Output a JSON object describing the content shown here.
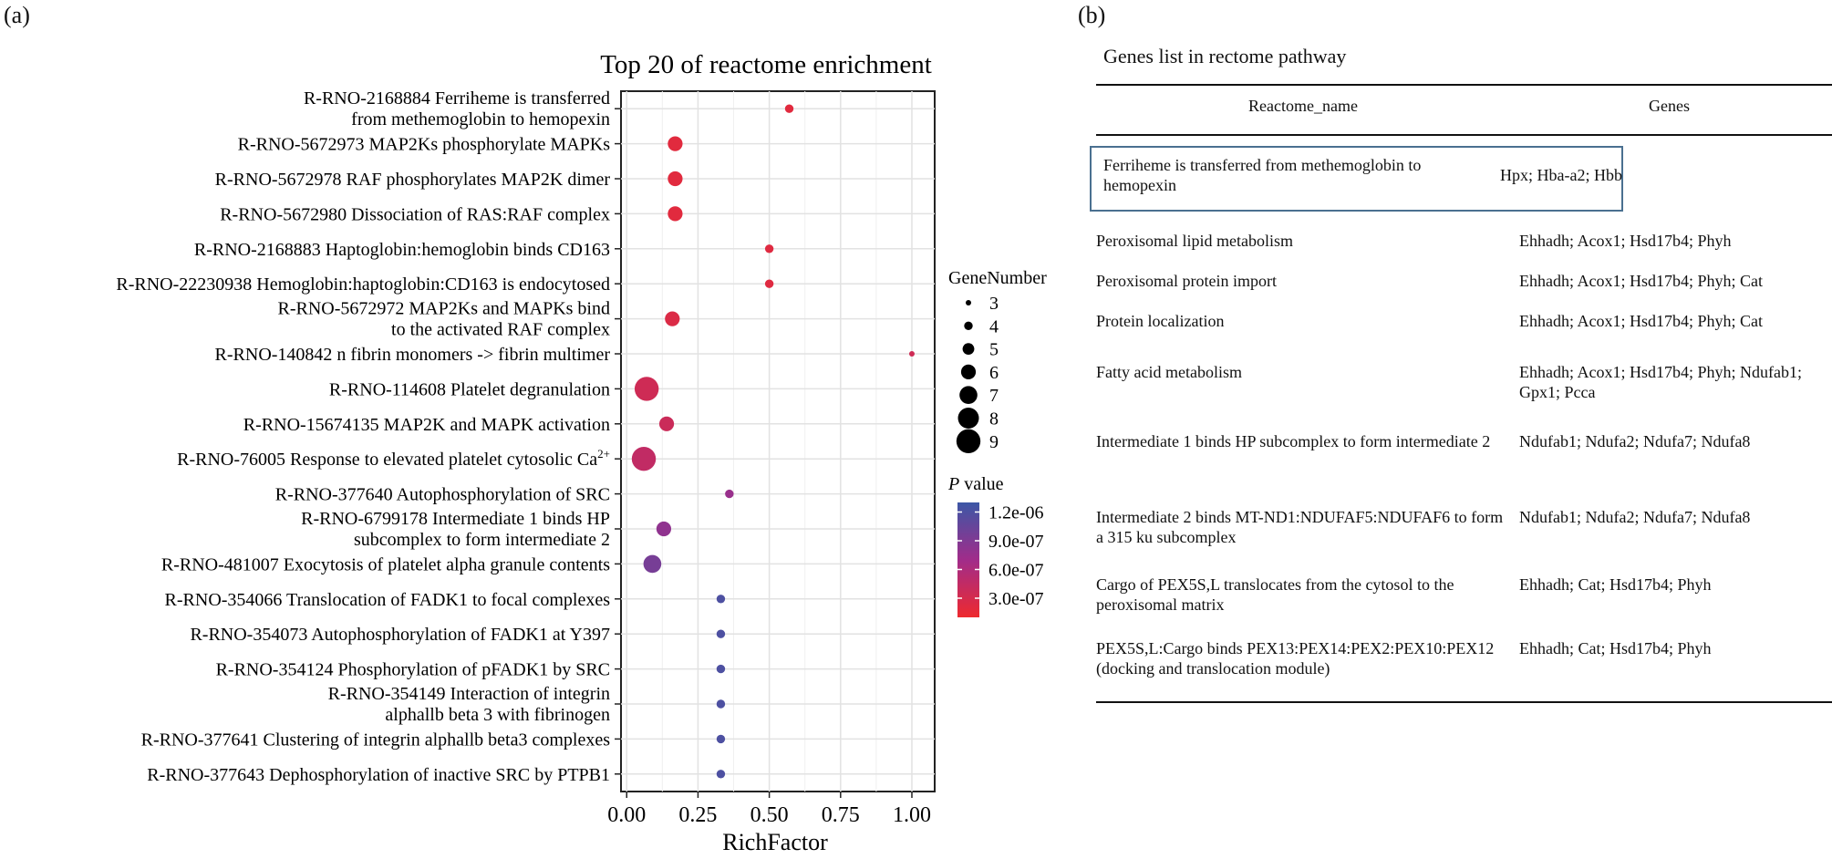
{
  "panel_a_label": "(a)",
  "panel_b_label": "(b)",
  "chart_data": {
    "type": "scatter",
    "title": "Top 20 of reactome enrichment",
    "xlabel": "RichFactor",
    "ylabel": "",
    "xlim": [
      -0.02,
      1.08
    ],
    "xticks": [
      0.0,
      0.25,
      0.5,
      0.75,
      1.0
    ],
    "xtick_labels": [
      "0.00",
      "0.25",
      "0.50",
      "0.75",
      "1.00"
    ],
    "grid": true,
    "legend_position": "right",
    "size_legend": {
      "title": "GeneNumber",
      "values": [
        3,
        4,
        5,
        6,
        7,
        8,
        9
      ]
    },
    "color_legend": {
      "title_italic": "P",
      "title_rest": " value",
      "ticks": [
        1.2e-06,
        9e-07,
        6e-07,
        3e-07
      ],
      "tick_labels": [
        "1.2e-06",
        "9.0e-07",
        "6.0e-07",
        "3.0e-07"
      ],
      "range": [
        1e-07,
        1.3e-06
      ],
      "low_color": "#ee2a2f",
      "mid_color": "#a12c8a",
      "high_color": "#3c57a6"
    },
    "points": [
      {
        "label": [
          "R-RNO-2168884 Ferriheme is transferred",
          "from methemoglobin to hemopexin"
        ],
        "x": 0.57,
        "genes": 4,
        "p": 2e-07
      },
      {
        "label": [
          "R-RNO-5672973 MAP2Ks phosphorylate MAPKs"
        ],
        "x": 0.17,
        "genes": 6,
        "p": 2e-07
      },
      {
        "label": [
          "R-RNO-5672978 RAF phosphorylates MAP2K dimer"
        ],
        "x": 0.17,
        "genes": 6,
        "p": 2e-07
      },
      {
        "label": [
          "R-RNO-5672980 Dissociation of RAS:RAF complex"
        ],
        "x": 0.17,
        "genes": 6,
        "p": 2e-07
      },
      {
        "label": [
          "R-RNO-2168883 Haptoglobin:hemoglobin binds CD163"
        ],
        "x": 0.5,
        "genes": 4,
        "p": 2.2e-07
      },
      {
        "label": [
          "R-RNO-22230938 Hemoglobin:haptoglobin:CD163 is endocytosed"
        ],
        "x": 0.5,
        "genes": 4,
        "p": 2.2e-07
      },
      {
        "label": [
          "R-RNO-5672972 MAP2Ks and MAPKs bind",
          "to the activated RAF complex"
        ],
        "x": 0.16,
        "genes": 6,
        "p": 2.5e-07
      },
      {
        "label": [
          "R-RNO-140842 n fibrin monomers -> fibrin multimer"
        ],
        "x": 1.0,
        "genes": 3,
        "p": 3.5e-07
      },
      {
        "label": [
          "R-RNO-114608 Platelet degranulation"
        ],
        "x": 0.07,
        "genes": 9,
        "p": 3.5e-07
      },
      {
        "label": [
          "R-RNO-15674135 MAP2K and MAPK activation"
        ],
        "x": 0.14,
        "genes": 6,
        "p": 3.8e-07
      },
      {
        "label": [
          "R-RNO-76005 Response to elevated platelet cytosolic Ca"
        ],
        "label_sup": "2+",
        "x": 0.06,
        "genes": 9,
        "p": 4.5e-07
      },
      {
        "label": [
          "R-RNO-377640 Autophosphorylation of SRC"
        ],
        "x": 0.36,
        "genes": 4,
        "p": 7.5e-07
      },
      {
        "label": [
          "R-RNO-6799178 Intermediate 1 binds HP",
          "subcomplex to form intermediate 2"
        ],
        "x": 0.13,
        "genes": 6,
        "p": 8e-07
      },
      {
        "label": [
          "R-RNO-481007 Exocytosis of platelet alpha granule contents"
        ],
        "x": 0.09,
        "genes": 7,
        "p": 9.5e-07
      },
      {
        "label": [
          "R-RNO-354066 Translocation of FADK1 to focal complexes"
        ],
        "x": 0.33,
        "genes": 4,
        "p": 1.2e-06
      },
      {
        "label": [
          "R-RNO-354073 Autophosphorylation of FADK1 at Y397"
        ],
        "x": 0.33,
        "genes": 4,
        "p": 1.2e-06
      },
      {
        "label": [
          "R-RNO-354124 Phosphorylation of pFADK1 by SRC"
        ],
        "x": 0.33,
        "genes": 4,
        "p": 1.2e-06
      },
      {
        "label": [
          "R-RNO-354149 Interaction of integrin",
          "alphallb beta 3 with fibrinogen"
        ],
        "x": 0.33,
        "genes": 4,
        "p": 1.2e-06
      },
      {
        "label": [
          "R-RNO-377641 Clustering of integrin alphallb beta3 complexes"
        ],
        "x": 0.33,
        "genes": 4,
        "p": 1.2e-06
      },
      {
        "label": [
          "R-RNO-377643 Dephosphorylation of inactive SRC by PTPB1"
        ],
        "x": 0.33,
        "genes": 4,
        "p": 1.2e-06
      }
    ]
  },
  "table": {
    "title": "Genes list in rectome pathway",
    "col1": "Reactome_name",
    "col2": "Genes",
    "rows": [
      {
        "name": "Ferriheme is transferred from methemoglobin to hemopexin",
        "genes": "Hpx; Hba-a2; Hbb",
        "highlighted": true
      },
      {
        "name": "Peroxisomal lipid metabolism",
        "genes": "Ehhadh; Acox1; Hsd17b4; Phyh"
      },
      {
        "name": "Peroxisomal protein import",
        "genes": "Ehhadh; Acox1; Hsd17b4; Phyh; Cat"
      },
      {
        "name": "Protein localization",
        "genes": "Ehhadh; Acox1; Hsd17b4; Phyh; Cat"
      },
      {
        "name": "Fatty acid metabolism",
        "genes": "Ehhadh; Acox1; Hsd17b4; Phyh; Ndufab1; Gpx1; Pcca"
      },
      {
        "name": "Intermediate 1 binds HP subcomplex to form intermediate 2",
        "genes": "Ndufab1; Ndufa2; Ndufa7; Ndufa8"
      },
      {
        "name": "Intermediate 2 binds MT-ND1:NDUFAF5:NDUFAF6 to form a 315 ku subcomplex",
        "genes": "Ndufab1; Ndufa2; Ndufa7; Ndufa8"
      },
      {
        "name": "Cargo of PEX5S,L translocates from the cytosol to the peroxisomal matrix",
        "genes": "Ehhadh; Cat; Hsd17b4; Phyh"
      },
      {
        "name": "PEX5S,L:Cargo binds PEX13:PEX14:PEX2:PEX10:PEX12 (docking and translocation module)",
        "genes": "Ehhadh; Cat; Hsd17b4; Phyh"
      }
    ]
  }
}
